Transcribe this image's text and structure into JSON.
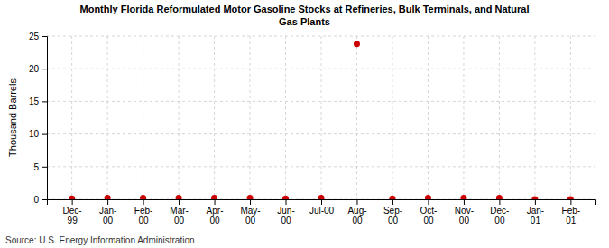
{
  "chart_data": {
    "type": "scatter",
    "title": "Monthly Florida Reformulated Motor Gasoline Stocks at Refineries, Bulk Terminals, and Natural\nGas Plants",
    "ylabel": "Thousand Barrels",
    "annotations": [
      "Source: U.S. Energy Information Administration"
    ],
    "categories": [
      "Dec-\n99",
      "Jan-\n00",
      "Feb-\n00",
      "Mar-\n00",
      "Apr-\n00",
      "May-\n00",
      "Jun-\n00",
      "Jul-00",
      "Aug-\n00",
      "Sep-\n00",
      "Oct-\n00",
      "Nov-\n00",
      "Dec-\n00",
      "Jan-\n01",
      "Feb-\n01"
    ],
    "values": [
      0.1,
      0.2,
      0.2,
      0.2,
      0.2,
      0.2,
      0.1,
      0.2,
      23.8,
      0.1,
      0.2,
      0.2,
      0.2,
      0.0,
      0.0
    ],
    "color": "#cc0000",
    "ylim": [
      0,
      25
    ],
    "yticks": [
      0,
      5,
      10,
      15,
      20,
      25
    ],
    "grid": true
  }
}
